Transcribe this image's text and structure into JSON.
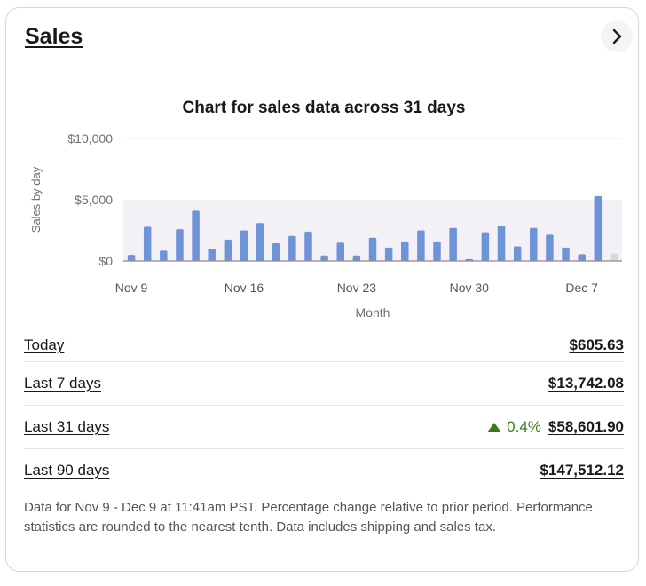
{
  "card": {
    "title": "Sales"
  },
  "icons": {
    "chevron": "chevron-right-icon",
    "trend": "triangle-up-icon"
  },
  "colors": {
    "bar": "#6f93d8",
    "bar_partial": "#d9d9d9",
    "highlight_band": "#f4f1f6",
    "positive": "#3d7a1f"
  },
  "chart_data": {
    "type": "bar",
    "title": "Chart for sales data across 31 days",
    "xlabel": "Month",
    "ylabel": "Sales by day",
    "ylim": [
      0,
      10000
    ],
    "yticks": [
      "$0",
      "$5,000",
      "$10,000"
    ],
    "xtick_labels": [
      "Nov 9",
      "Nov 16",
      "Nov 23",
      "Nov 30",
      "Dec 7"
    ],
    "categories": [
      "Nov 9",
      "Nov 10",
      "Nov 11",
      "Nov 12",
      "Nov 13",
      "Nov 14",
      "Nov 15",
      "Nov 16",
      "Nov 17",
      "Nov 18",
      "Nov 19",
      "Nov 20",
      "Nov 21",
      "Nov 22",
      "Nov 23",
      "Nov 24",
      "Nov 25",
      "Nov 26",
      "Nov 27",
      "Nov 28",
      "Nov 29",
      "Nov 30",
      "Dec 1",
      "Dec 2",
      "Dec 3",
      "Dec 4",
      "Dec 5",
      "Dec 6",
      "Dec 7",
      "Dec 8",
      "Dec 9"
    ],
    "values": [
      500,
      2800,
      850,
      2600,
      4100,
      1000,
      1750,
      2500,
      3100,
      1450,
      2050,
      2400,
      450,
      1500,
      450,
      1900,
      1100,
      1600,
      2500,
      1600,
      2700,
      150,
      2350,
      2900,
      1200,
      2700,
      2150,
      1100,
      550,
      5300,
      606
    ],
    "partial_last_day": true,
    "grid": false
  },
  "metrics": [
    {
      "label": "Today",
      "value": "$605.63",
      "change": ""
    },
    {
      "label": "Last 7 days",
      "value": "$13,742.08",
      "change": ""
    },
    {
      "label": "Last 31 days",
      "value": "$58,601.90",
      "change": "0.4%"
    },
    {
      "label": "Last 90 days",
      "value": "$147,512.12",
      "change": ""
    }
  ],
  "footnote": "Data for Nov 9 - Dec 9 at 11:41am PST. Percentage change relative to prior period. Performance statistics are rounded to the nearest tenth. Data includes shipping and sales tax."
}
